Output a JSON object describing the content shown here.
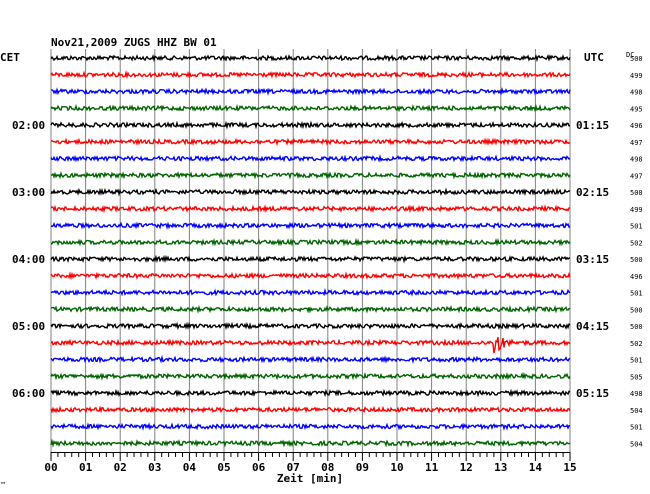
{
  "chart_data": {
    "type": "line",
    "title": "Nov21,2009   ZUGS HHZ BW 01",
    "left_zone_label": "CET",
    "right_zone_label": "UTC",
    "offset_header": "DC",
    "xlabel": "Zeit [min]",
    "xlim": [
      0,
      15
    ],
    "x_ticks": [
      "00",
      "01",
      "02",
      "03",
      "04",
      "05",
      "06",
      "07",
      "08",
      "09",
      "10",
      "11",
      "12",
      "13",
      "14",
      "15"
    ],
    "trace_colors": [
      "#000000",
      "#ff0000",
      "#0000ff",
      "#006400"
    ],
    "left_hour_labels": [
      {
        "row": 4,
        "text": "02:00"
      },
      {
        "row": 8,
        "text": "03:00"
      },
      {
        "row": 12,
        "text": "04:00"
      },
      {
        "row": 16,
        "text": "05:00"
      },
      {
        "row": 20,
        "text": "06:00"
      }
    ],
    "right_hour_labels": [
      {
        "row": 4,
        "text": "01:15"
      },
      {
        "row": 8,
        "text": "02:15"
      },
      {
        "row": 12,
        "text": "03:15"
      },
      {
        "row": 16,
        "text": "04:15"
      },
      {
        "row": 20,
        "text": "05:15"
      }
    ],
    "dc_offsets": [
      500,
      499,
      498,
      495,
      496,
      497,
      498,
      497,
      500,
      499,
      501,
      502,
      500,
      496,
      501,
      500,
      500,
      502,
      501,
      505,
      498,
      504,
      501,
      504
    ],
    "events": [
      {
        "row": 17,
        "minute": 12.8,
        "label": ""
      }
    ]
  },
  "footnote": "™"
}
